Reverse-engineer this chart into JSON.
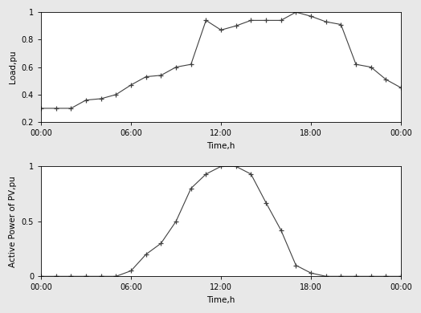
{
  "load_x": [
    0,
    1,
    2,
    3,
    4,
    5,
    6,
    7,
    8,
    9,
    10,
    11,
    12,
    13,
    14,
    15,
    16,
    17,
    18,
    19,
    20,
    21,
    22,
    23,
    24
  ],
  "load_y": [
    0.3,
    0.3,
    0.3,
    0.36,
    0.37,
    0.4,
    0.47,
    0.53,
    0.54,
    0.6,
    0.62,
    0.94,
    0.87,
    0.9,
    0.94,
    0.94,
    0.94,
    1.0,
    0.97,
    0.93,
    0.91,
    0.62,
    0.6,
    0.51,
    0.45
  ],
  "pv_x": [
    0,
    1,
    2,
    3,
    4,
    5,
    6,
    7,
    8,
    9,
    10,
    11,
    12,
    13,
    14,
    15,
    16,
    17,
    18,
    19,
    20,
    21,
    22,
    23,
    24
  ],
  "pv_y": [
    0.0,
    0.0,
    0.0,
    0.0,
    0.0,
    0.0,
    0.05,
    0.2,
    0.3,
    0.5,
    0.8,
    0.93,
    1.0,
    1.0,
    0.93,
    0.67,
    0.42,
    0.1,
    0.03,
    0.0,
    0.0,
    0.0,
    0.0,
    0.0,
    0.0
  ],
  "load_ylim": [
    0.2,
    1.0
  ],
  "pv_ylim": [
    0.0,
    1.0
  ],
  "load_yticks": [
    0.2,
    0.4,
    0.6,
    0.8,
    1.0
  ],
  "pv_yticks": [
    0.0,
    0.5,
    1.0
  ],
  "xtick_labels": [
    "00:00",
    "06:00",
    "12:00",
    "18:00",
    "00:00"
  ],
  "xtick_positions": [
    0,
    6,
    12,
    18,
    24
  ],
  "xlabel": "Time,h",
  "load_ylabel": "Load,pu",
  "pv_ylabel": "Active Power of PV,pu",
  "line_color": "#404040",
  "bg_color": "#e8e8e8",
  "axes_bg_color": "#ffffff",
  "marker": "+",
  "markersize": 5,
  "markeredgewidth": 0.9,
  "linewidth": 0.8,
  "tick_fontsize": 7,
  "label_fontsize": 7.5
}
